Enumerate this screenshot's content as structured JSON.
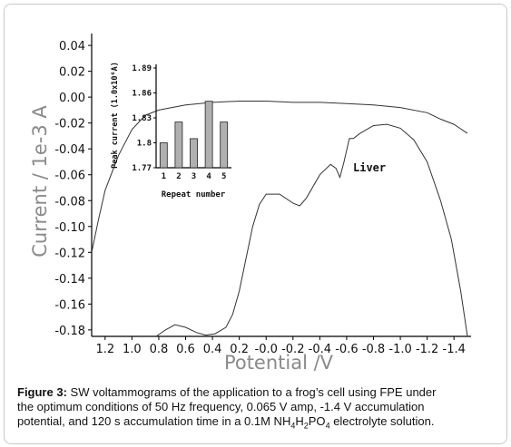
{
  "chart_data": [
    {
      "type": "line",
      "xlabel": "Potential /V",
      "ylabel": "Current / 1e-3 A",
      "x_ticks": [
        "1.2",
        "1.0",
        "0.8",
        "0.6",
        "0.4",
        "0.2",
        "-0.0",
        "-0.2",
        "-0.4",
        "-0.6",
        "-0.8",
        "-1.0",
        "-1.2",
        "-1.4"
      ],
      "y_ticks": [
        "0.04",
        "0.02",
        "0.00",
        "-0.02",
        "-0.04",
        "-0.06",
        "-0.08",
        "-0.10",
        "-0.12",
        "-0.14",
        "-0.16",
        "-0.18"
      ],
      "xlim": [
        1.3,
        -1.5
      ],
      "ylim": [
        -0.185,
        0.045
      ],
      "x_reversed": true,
      "grid": false,
      "annotation": "Liver",
      "series": [
        {
          "points": [
            [
              1.3,
              -0.12
            ],
            [
              1.25,
              -0.095
            ],
            [
              1.2,
              -0.072
            ],
            [
              1.1,
              -0.045
            ],
            [
              1.0,
              -0.025
            ],
            [
              0.9,
              -0.014
            ],
            [
              0.8,
              -0.01
            ],
            [
              0.6,
              -0.006
            ],
            [
              0.4,
              -0.004
            ],
            [
              0.2,
              -0.003
            ],
            [
              0.0,
              -0.003
            ],
            [
              -0.2,
              -0.004
            ],
            [
              -0.4,
              -0.004
            ],
            [
              -0.6,
              -0.005
            ],
            [
              -0.8,
              -0.006
            ],
            [
              -1.0,
              -0.008
            ],
            [
              -1.2,
              -0.012
            ],
            [
              -1.3,
              -0.017
            ],
            [
              -1.4,
              -0.021
            ],
            [
              -1.5,
              -0.028
            ]
          ]
        },
        {
          "points": [
            [
              0.82,
              -0.185
            ],
            [
              0.75,
              -0.18
            ],
            [
              0.68,
              -0.176
            ],
            [
              0.6,
              -0.178
            ],
            [
              0.52,
              -0.182
            ],
            [
              0.45,
              -0.184
            ],
            [
              0.38,
              -0.183
            ],
            [
              0.3,
              -0.178
            ],
            [
              0.25,
              -0.168
            ],
            [
              0.2,
              -0.15
            ],
            [
              0.15,
              -0.125
            ],
            [
              0.1,
              -0.1
            ],
            [
              0.05,
              -0.083
            ],
            [
              0.0,
              -0.075
            ],
            [
              -0.1,
              -0.075
            ],
            [
              -0.2,
              -0.082
            ],
            [
              -0.25,
              -0.084
            ],
            [
              -0.3,
              -0.078
            ],
            [
              -0.4,
              -0.06
            ],
            [
              -0.48,
              -0.052
            ],
            [
              -0.52,
              -0.055
            ],
            [
              -0.55,
              -0.062
            ],
            [
              -0.58,
              -0.05
            ],
            [
              -0.62,
              -0.032
            ],
            [
              -0.65,
              -0.032
            ],
            [
              -0.7,
              -0.028
            ],
            [
              -0.8,
              -0.022
            ],
            [
              -0.9,
              -0.021
            ],
            [
              -1.0,
              -0.024
            ],
            [
              -1.1,
              -0.033
            ],
            [
              -1.2,
              -0.05
            ],
            [
              -1.3,
              -0.08
            ],
            [
              -1.38,
              -0.11
            ],
            [
              -1.45,
              -0.15
            ],
            [
              -1.5,
              -0.185
            ]
          ]
        }
      ]
    },
    {
      "type": "bar",
      "categories": [
        "1",
        "2",
        "3",
        "4",
        "5"
      ],
      "values": [
        1.8,
        1.825,
        1.805,
        1.85,
        1.825
      ],
      "xlabel": "Repeat number",
      "ylabel": "Peak current (1.0x10⁶A)",
      "y_ticks": [
        "1.77",
        "1.8",
        "1.83",
        "1.86",
        "1.89"
      ],
      "ylim": [
        1.77,
        1.89
      ]
    }
  ],
  "caption": {
    "label": "Figure 3:",
    "line1": " SW voltammograms of the application to a frog’s cell using FPE under",
    "line2": "the optimum conditions of 50 Hz frequency, 0.065 V amp, -1.4 V accumulation",
    "line3_pre": "potential, and 120 s accumulation time in a 0.1M NH",
    "sub1": "4",
    "mid1": "H",
    "sub2": "2",
    "mid2": "PO",
    "sub3": "4",
    "line3_post": " electrolyte solution."
  },
  "colors": {
    "axis": "#000000",
    "curve": "#333333",
    "bar_fill": "#b0b0b0",
    "axis_label": "#8a8a8a"
  }
}
